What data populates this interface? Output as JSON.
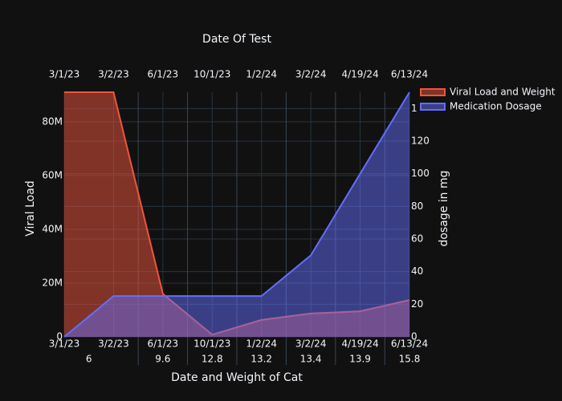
{
  "chart_data": {
    "type": "area",
    "title": "Date Of Test",
    "x_title": "Date and Weight of Cat",
    "y_title": "Viral Load",
    "y2_title": "dosage in mg",
    "categories": [
      "3/1/23",
      "3/2/23",
      "6/1/23",
      "10/1/23",
      "1/2/24",
      "3/2/24",
      "4/19/24",
      "6/13/24"
    ],
    "weights": [
      6,
      6,
      9.6,
      12.8,
      13.2,
      13.4,
      13.9,
      15.8
    ],
    "series": [
      {
        "name": "Viral Load and Weight",
        "color": "#ef553b",
        "values": [
          91000000,
          91000000,
          16000000,
          800000,
          6300000,
          8700000,
          9500000,
          13700000
        ]
      },
      {
        "name": "Medication Dosage",
        "color": "#636efa",
        "axis": "y2",
        "values": [
          0,
          25,
          25,
          25,
          25,
          50,
          100,
          150
        ]
      }
    ],
    "ylim": [
      0,
      91000000
    ],
    "yticks": [
      0,
      {
        "value": 20000000,
        "label": "20M"
      },
      {
        "value": 40000000,
        "label": "40M"
      },
      {
        "value": 60000000,
        "label": "60M"
      },
      {
        "value": 80000000,
        "label": "80M"
      }
    ],
    "y2lim": [
      0,
      150
    ],
    "y2ticks": [
      0,
      20,
      40,
      60,
      80,
      100,
      120,
      140
    ],
    "grid": true,
    "legend": "top-right"
  }
}
